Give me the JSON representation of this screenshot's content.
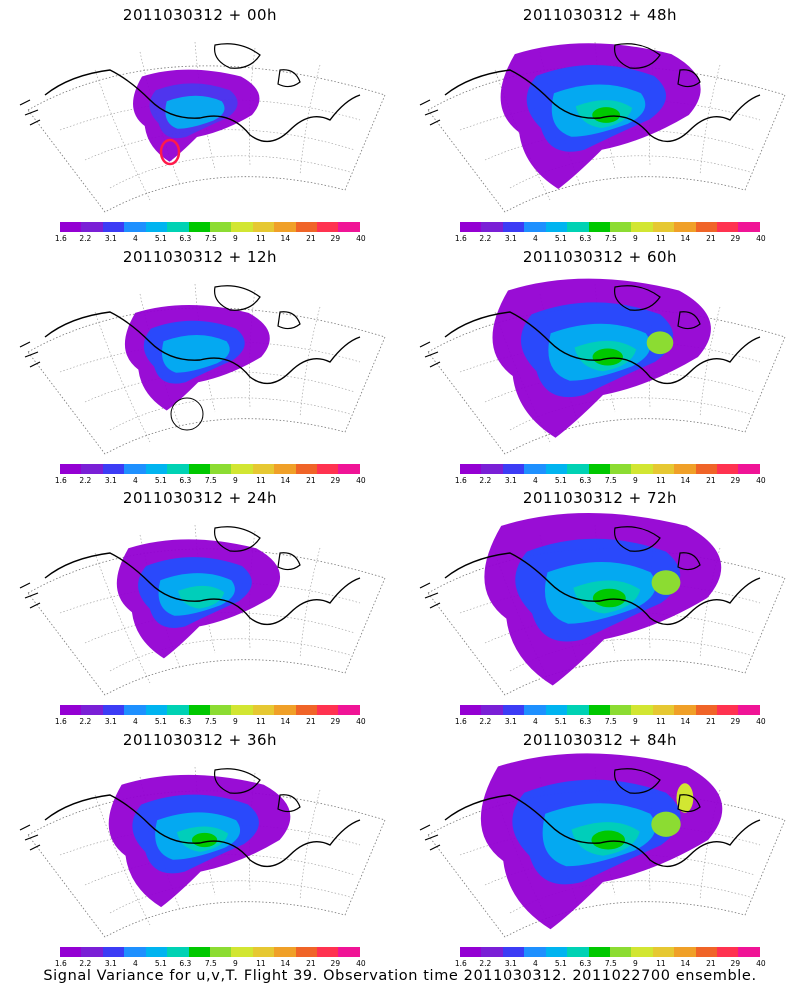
{
  "panels": [
    {
      "title": "2011030312 + 00h",
      "level": 0
    },
    {
      "title": "2011030312 + 48h",
      "level": 4
    },
    {
      "title": "2011030312 + 12h",
      "level": 1
    },
    {
      "title": "2011030312 + 60h",
      "level": 5
    },
    {
      "title": "2011030312 + 24h",
      "level": 2
    },
    {
      "title": "2011030312 + 72h",
      "level": 6
    },
    {
      "title": "2011030312 + 36h",
      "level": 3
    },
    {
      "title": "2011030312 + 84h",
      "level": 7
    }
  ],
  "colorbar": {
    "labels": [
      "1.6",
      "2.2",
      "3.1",
      "4",
      "5.1",
      "6.3",
      "7.5",
      "9",
      "11",
      "14",
      "21",
      "29",
      "40"
    ],
    "colors": [
      "#9400d3",
      "#7a1fd6",
      "#3c3cf5",
      "#1e90ff",
      "#00b4f0",
      "#00d2b4",
      "#00c800",
      "#8cdc32",
      "#d2e632",
      "#e6c832",
      "#f0a028",
      "#f06428",
      "#ff3250",
      "#f01496"
    ]
  },
  "footer": "Signal Variance for u,v,T. Flight 39. Observation time 2011030312. 2011022700 ensemble."
}
